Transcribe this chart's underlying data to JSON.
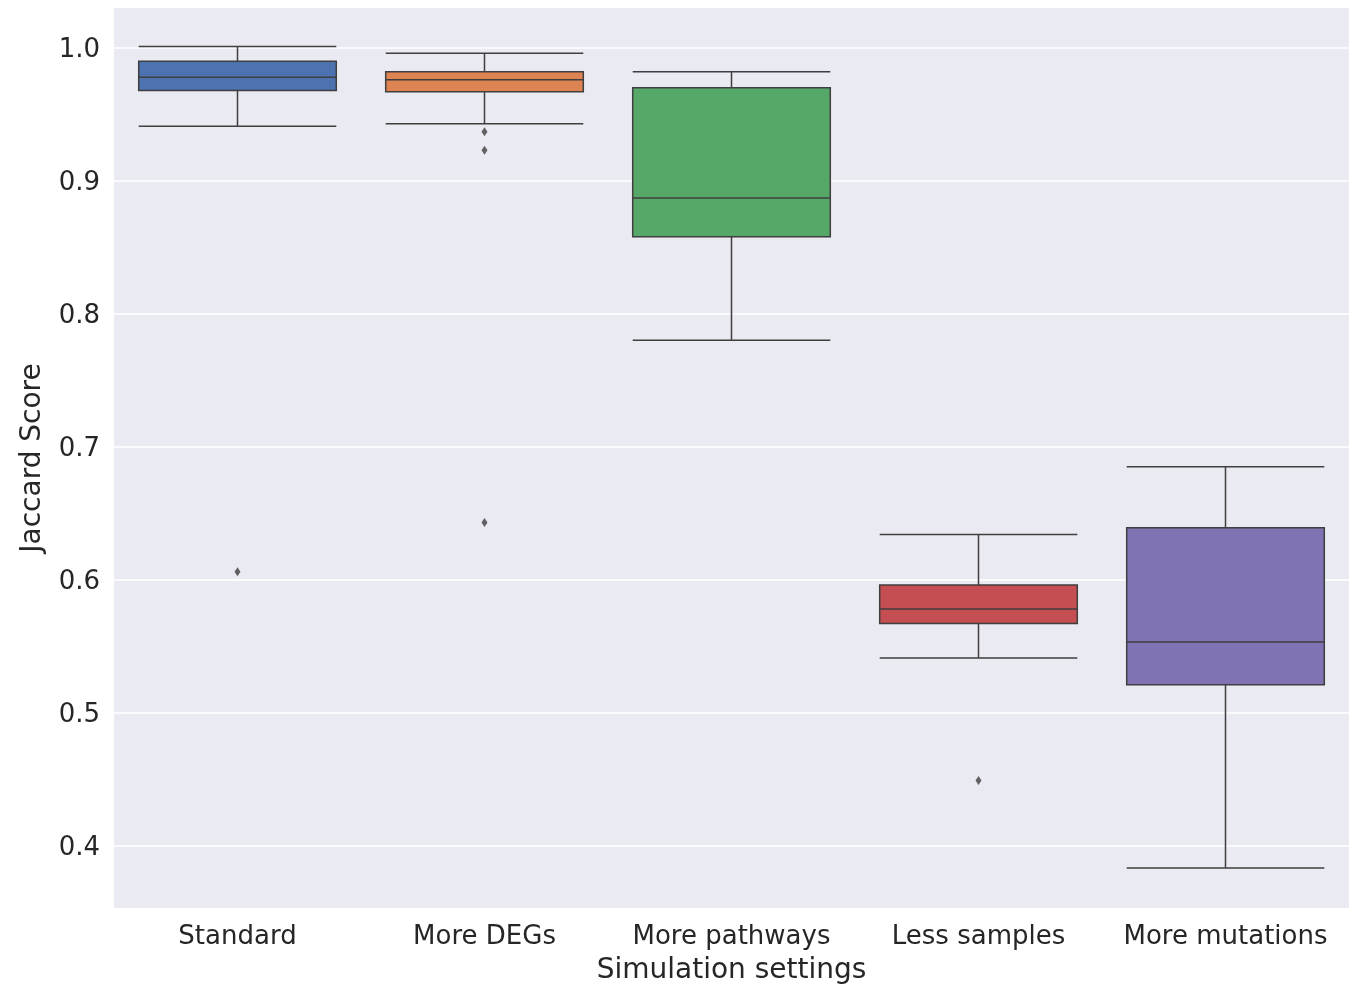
{
  "chart_data": {
    "type": "box",
    "xlabel": "Simulation settings",
    "ylabel": "Jaccard Score",
    "categories": [
      "Standard",
      "More DEGs",
      "More pathways",
      "Less samples",
      "More mutations"
    ],
    "colors": [
      "#4c72b0",
      "#dd8452",
      "#55a868",
      "#c44e52",
      "#8172b3"
    ],
    "boxes": [
      {
        "low": 0.941,
        "q1": 0.968,
        "median": 0.978,
        "q3": 0.99,
        "high": 1.001,
        "outliers": [
          0.606
        ]
      },
      {
        "low": 0.943,
        "q1": 0.967,
        "median": 0.976,
        "q3": 0.982,
        "high": 0.996,
        "outliers": [
          0.937,
          0.923,
          0.643
        ]
      },
      {
        "low": 0.78,
        "q1": 0.858,
        "median": 0.887,
        "q3": 0.97,
        "high": 0.982
      },
      {
        "low": 0.541,
        "q1": 0.567,
        "median": 0.578,
        "q3": 0.596,
        "high": 0.634,
        "outliers": [
          0.449
        ]
      },
      {
        "low": 0.383,
        "q1": 0.521,
        "median": 0.553,
        "q3": 0.639,
        "high": 0.685
      }
    ],
    "ylim": [
      0.353,
      1.03
    ],
    "yticks": [
      0.4,
      0.5,
      0.6,
      0.7,
      0.8,
      0.9,
      {
        "value": 1,
        "label": "1.0"
      }
    ],
    "grid": "y",
    "marker": "diamond"
  }
}
